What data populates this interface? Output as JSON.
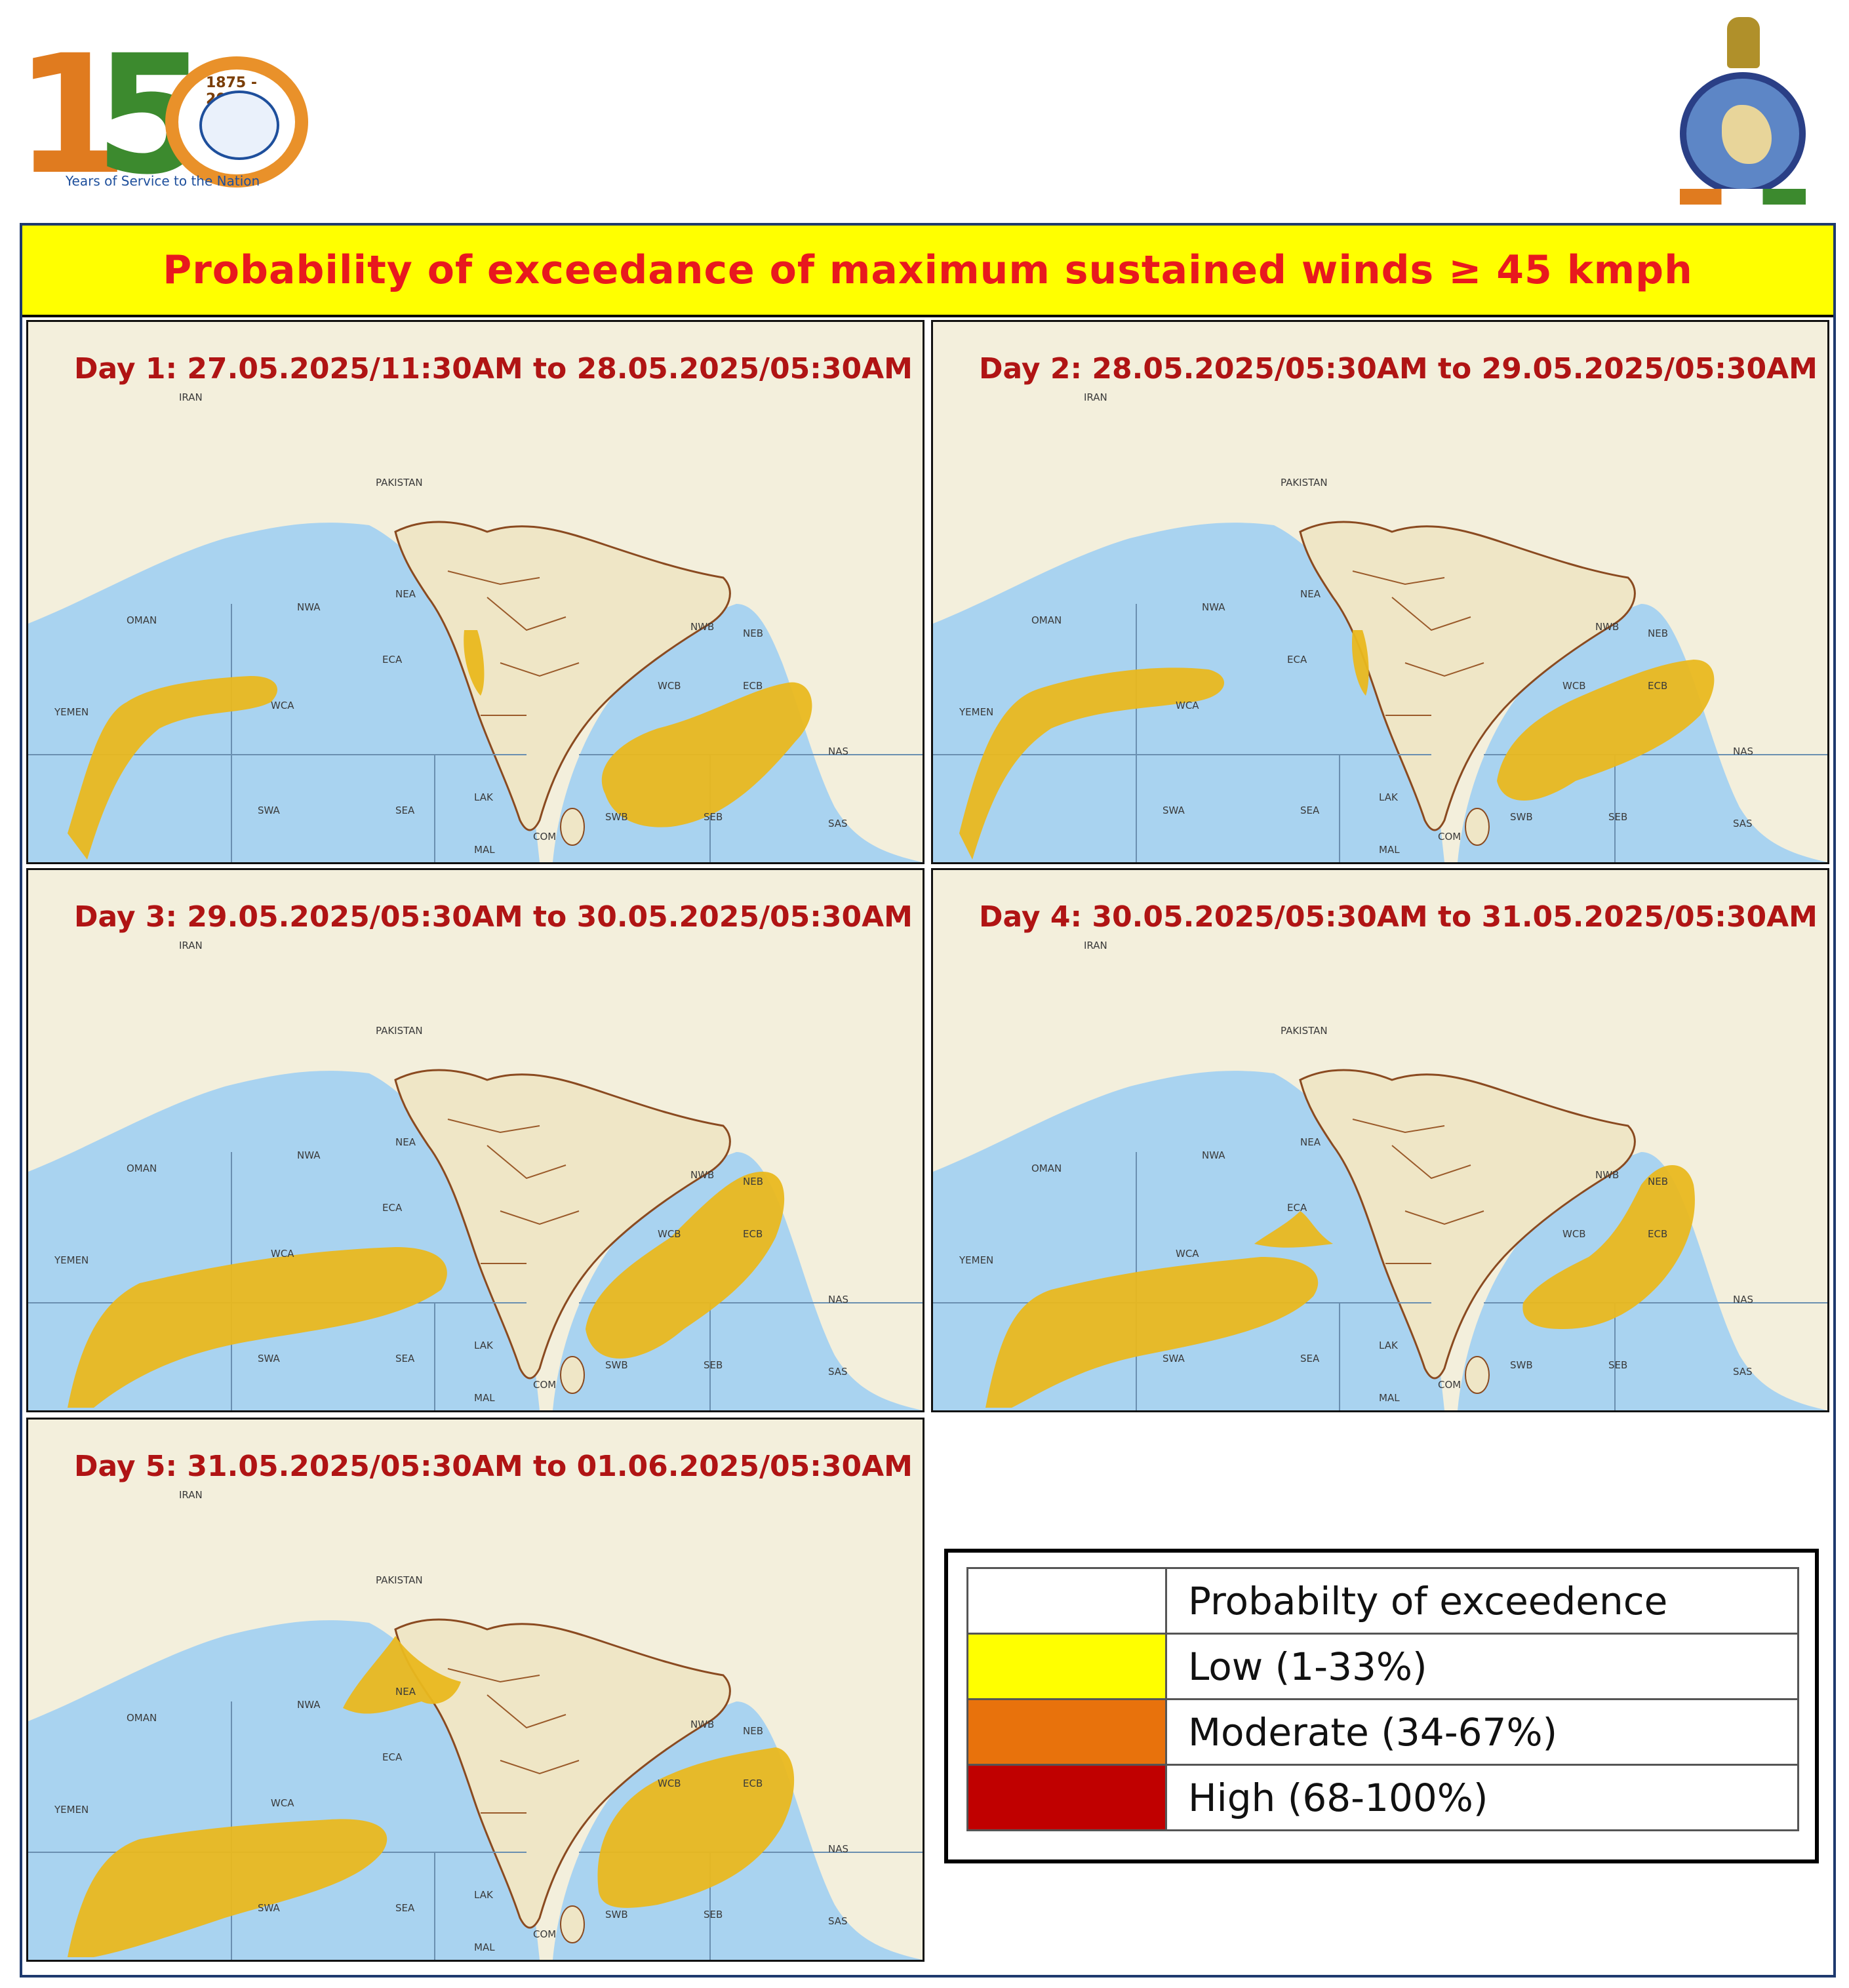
{
  "header": {
    "logo_150": {
      "digits_left": "1",
      "digits_mid": "5",
      "year_text": "1875 - 2025",
      "tagline": "Years of Service to the Nation"
    },
    "right_logo": "imd-emblem-icon"
  },
  "title": "Probability  of exceedance of maximum  sustained  winds ≥ 45 kmph",
  "colors": {
    "title_bg": "#ffff00",
    "title_text": "#e8191e",
    "label_text": "#b01414",
    "sea": "#a9d3f0",
    "deep_sea": "#7fc1ea",
    "land": "#f3efdc",
    "low": "#ffff00",
    "moderate": "#e8720c",
    "high": "#c00000",
    "forecast_fill": "#e9b81f"
  },
  "panels": [
    {
      "label": "Day 1:  27.05.2025/11:30AM  to 28.05.2025/05:30AM"
    },
    {
      "label": "Day 2:  28.05.2025/05:30AM  to 29.05.2025/05:30AM"
    },
    {
      "label": "Day 3:   29.05.2025/05:30AM  to 30.05.2025/05:30AM"
    },
    {
      "label": "Day 4:  30.05.2025/05:30AM  to 31.05.2025/05:30AM"
    },
    {
      "label": "Day 5:  31.05.2025/05:30AM  to 01.06.2025/05:30AM"
    }
  ],
  "map_labels": {
    "pakistan": "PAKISTAN",
    "iran": "IRAN",
    "oman": "OMAN",
    "yemen": "YEMEN",
    "nwa": "NWA",
    "nea": "NEA",
    "eca": "ECA",
    "wca": "WCA",
    "swa": "SWA",
    "sea": "SEA",
    "lak": "LAK",
    "mal": "MAL",
    "com": "COM",
    "nwb": "NWB",
    "neb": "NEB",
    "wcb": "WCB",
    "ecb": "ECB",
    "swb": "SWB",
    "seb": "SEB",
    "nas": "NAS",
    "sas": "SAS"
  },
  "legend": {
    "header": "Probabilty of exceedence",
    "items": [
      {
        "label": "Low (1-33%)",
        "color": "#ffff00"
      },
      {
        "label": "Moderate (34-67%)",
        "color": "#e8720c"
      },
      {
        "label": "High (68-100%)",
        "color": "#c00000"
      }
    ]
  }
}
